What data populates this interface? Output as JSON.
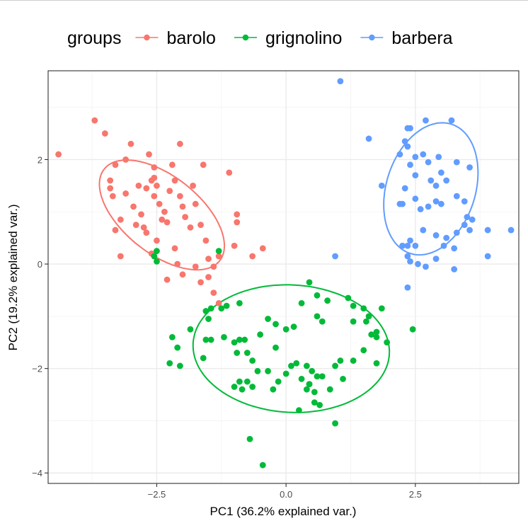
{
  "chart_data": {
    "type": "scatter",
    "xlabel": "PC1 (36.2% explained var.)",
    "ylabel": "PC2 (19.2% explained var.)",
    "xlim": [
      -4.6,
      4.5
    ],
    "ylim": [
      -4.2,
      3.7
    ],
    "xticks": [
      -2.5,
      0.0,
      2.5
    ],
    "xtick_labels": [
      "−2.5",
      "0.0",
      "2.5"
    ],
    "yticks": [
      -4,
      -2,
      0,
      2
    ],
    "ytick_labels": [
      "−4",
      "−2",
      "0",
      "2"
    ],
    "grid": true,
    "legend": {
      "title": "groups",
      "position": "top"
    },
    "series": [
      {
        "name": "barolo",
        "color": "#F8766D",
        "ellipse": {
          "cx": -2.4,
          "cy": 0.94,
          "rx": 1.42,
          "ry": 0.74,
          "angle_deg": -38
        },
        "points": [
          [
            -4.4,
            2.1
          ],
          [
            -3.7,
            2.75
          ],
          [
            -3.5,
            2.5
          ],
          [
            -3.3,
            1.9
          ],
          [
            -3.4,
            1.6
          ],
          [
            -3.4,
            1.45
          ],
          [
            -3.35,
            1.3
          ],
          [
            -3.2,
            0.85
          ],
          [
            -3.3,
            0.65
          ],
          [
            -3.1,
            2.0
          ],
          [
            -3.0,
            2.3
          ],
          [
            -3.1,
            1.35
          ],
          [
            -2.95,
            1.1
          ],
          [
            -2.9,
            0.75
          ],
          [
            -2.8,
            0.95
          ],
          [
            -2.75,
            0.7
          ],
          [
            -2.7,
            0.6
          ],
          [
            -2.55,
            1.85
          ],
          [
            -2.55,
            1.65
          ],
          [
            -2.5,
            1.5
          ],
          [
            -2.55,
            1.3
          ],
          [
            -2.45,
            1.15
          ],
          [
            -2.35,
            1.0
          ],
          [
            -2.4,
            0.85
          ],
          [
            -2.3,
            0.8
          ],
          [
            -2.5,
            0.45
          ],
          [
            -2.6,
            0.2
          ],
          [
            -3.2,
            0.15
          ],
          [
            -2.2,
            1.9
          ],
          [
            -2.15,
            1.6
          ],
          [
            -2.25,
            1.4
          ],
          [
            -2.05,
            1.3
          ],
          [
            -2.0,
            1.1
          ],
          [
            -1.95,
            0.9
          ],
          [
            -1.85,
            0.7
          ],
          [
            -2.15,
            0.3
          ],
          [
            -2.1,
            0.0
          ],
          [
            -2.3,
            -0.3
          ],
          [
            -2.0,
            -0.2
          ],
          [
            -1.75,
            1.15
          ],
          [
            -1.65,
            0.75
          ],
          [
            -1.55,
            0.45
          ],
          [
            -1.5,
            0.1
          ],
          [
            -1.4,
            -0.05
          ],
          [
            -1.3,
            0.15
          ],
          [
            -1.75,
            -0.05
          ],
          [
            -2.05,
            2.3
          ],
          [
            -1.8,
            1.5
          ],
          [
            -1.65,
            -0.35
          ],
          [
            -1.5,
            -0.25
          ],
          [
            -1.4,
            -0.55
          ],
          [
            -1.3,
            -0.75
          ],
          [
            -1.1,
            1.75
          ],
          [
            -0.95,
            0.95
          ],
          [
            -0.95,
            0.8
          ],
          [
            -1.0,
            0.35
          ],
          [
            -0.65,
            0.15
          ],
          [
            -0.45,
            0.3
          ],
          [
            -1.6,
            1.9
          ],
          [
            -2.7,
            1.45
          ],
          [
            -2.85,
            1.5
          ],
          [
            -2.6,
            1.6
          ],
          [
            -2.65,
            2.1
          ]
        ]
      },
      {
        "name": "grignolino",
        "color": "#00BA38",
        "ellipse": {
          "cx": 0.1,
          "cy": -1.62,
          "rx": 1.9,
          "ry": 1.22,
          "angle_deg": -3
        },
        "points": [
          [
            -2.5,
            0.25
          ],
          [
            -2.5,
            0.05
          ],
          [
            -1.3,
            0.25
          ],
          [
            -1.55,
            -0.9
          ],
          [
            -1.5,
            -1.05
          ],
          [
            -1.25,
            -0.85
          ],
          [
            -1.15,
            -0.8
          ],
          [
            -2.2,
            -1.4
          ],
          [
            -2.1,
            -1.6
          ],
          [
            -1.85,
            -1.25
          ],
          [
            -2.25,
            -1.9
          ],
          [
            -2.05,
            -1.95
          ],
          [
            -1.6,
            -1.8
          ],
          [
            -1.55,
            -1.45
          ],
          [
            -1.45,
            -1.45
          ],
          [
            -1.2,
            -1.4
          ],
          [
            -1.0,
            -1.5
          ],
          [
            -0.95,
            -1.7
          ],
          [
            -0.9,
            -1.45
          ],
          [
            -0.8,
            -1.45
          ],
          [
            -0.75,
            -1.7
          ],
          [
            -0.65,
            -1.85
          ],
          [
            -0.9,
            -0.75
          ],
          [
            -0.35,
            -1.05
          ],
          [
            -0.2,
            -1.15
          ],
          [
            -0.5,
            -1.35
          ],
          [
            0.0,
            -1.25
          ],
          [
            0.15,
            -1.2
          ],
          [
            0.3,
            -0.75
          ],
          [
            0.45,
            -0.35
          ],
          [
            0.6,
            -1.0
          ],
          [
            0.7,
            -1.1
          ],
          [
            0.8,
            -0.7
          ],
          [
            1.2,
            -0.65
          ],
          [
            1.3,
            -0.8
          ],
          [
            1.5,
            -0.85
          ],
          [
            1.6,
            -1.0
          ],
          [
            1.75,
            -1.3
          ],
          [
            1.85,
            -0.85
          ],
          [
            1.95,
            -1.5
          ],
          [
            1.75,
            -1.4
          ],
          [
            1.65,
            -1.35
          ],
          [
            1.55,
            -1.1
          ],
          [
            1.5,
            -1.65
          ],
          [
            1.3,
            -1.85
          ],
          [
            1.05,
            -1.85
          ],
          [
            0.95,
            -1.95
          ],
          [
            0.7,
            -2.15
          ],
          [
            0.5,
            -2.05
          ],
          [
            0.4,
            -1.95
          ],
          [
            0.3,
            -2.2
          ],
          [
            0.2,
            -1.9
          ],
          [
            0.1,
            -1.95
          ],
          [
            0.0,
            -2.1
          ],
          [
            -0.15,
            -2.25
          ],
          [
            -0.25,
            -2.4
          ],
          [
            -0.35,
            -2.05
          ],
          [
            -0.55,
            -2.05
          ],
          [
            -0.75,
            -2.25
          ],
          [
            -0.9,
            -2.25
          ],
          [
            -1.0,
            -2.35
          ],
          [
            -0.85,
            -2.4
          ],
          [
            -0.65,
            -2.35
          ],
          [
            0.45,
            -2.3
          ],
          [
            0.55,
            -2.45
          ],
          [
            0.55,
            -2.65
          ],
          [
            0.65,
            -2.7
          ],
          [
            0.45,
            -2.3
          ],
          [
            0.4,
            -2.4
          ],
          [
            0.25,
            -2.8
          ],
          [
            -0.7,
            -3.35
          ],
          [
            -0.45,
            -3.85
          ],
          [
            0.95,
            -3.05
          ],
          [
            -2.55,
            0.15
          ],
          [
            2.45,
            -1.25
          ],
          [
            1.3,
            -1.1
          ],
          [
            1.1,
            -2.2
          ],
          [
            0.6,
            -2.15
          ],
          [
            -1.45,
            -0.85
          ],
          [
            0.85,
            -2.4
          ],
          [
            1.75,
            -1.9
          ],
          [
            0.6,
            -0.6
          ],
          [
            -0.2,
            -1.6
          ]
        ]
      },
      {
        "name": "barbera",
        "color": "#619CFF",
        "ellipse": {
          "cx": 2.8,
          "cy": 1.44,
          "rx": 1.3,
          "ry": 0.86,
          "angle_deg": 72
        },
        "points": [
          [
            1.05,
            3.5
          ],
          [
            1.6,
            2.4
          ],
          [
            0.95,
            0.15
          ],
          [
            2.35,
            2.6
          ],
          [
            2.4,
            2.6
          ],
          [
            2.7,
            2.75
          ],
          [
            3.2,
            2.75
          ],
          [
            2.3,
            2.35
          ],
          [
            2.35,
            2.25
          ],
          [
            2.5,
            2.05
          ],
          [
            2.65,
            2.1
          ],
          [
            2.75,
            1.95
          ],
          [
            2.95,
            2.05
          ],
          [
            3.0,
            1.75
          ],
          [
            2.2,
            2.1
          ],
          [
            2.4,
            1.9
          ],
          [
            2.8,
            1.6
          ],
          [
            2.9,
            1.5
          ],
          [
            3.1,
            1.6
          ],
          [
            3.3,
            1.95
          ],
          [
            3.55,
            1.85
          ],
          [
            1.85,
            1.5
          ],
          [
            2.3,
            1.45
          ],
          [
            2.5,
            1.25
          ],
          [
            2.6,
            1.05
          ],
          [
            2.9,
            1.2
          ],
          [
            3.3,
            1.3
          ],
          [
            3.45,
            1.2
          ],
          [
            2.2,
            1.15
          ],
          [
            2.25,
            1.15
          ],
          [
            2.75,
            1.1
          ],
          [
            3.0,
            1.15
          ],
          [
            3.5,
            0.9
          ],
          [
            3.6,
            0.85
          ],
          [
            2.65,
            0.65
          ],
          [
            2.9,
            0.55
          ],
          [
            3.1,
            0.5
          ],
          [
            3.3,
            0.6
          ],
          [
            3.45,
            0.75
          ],
          [
            3.9,
            0.65
          ],
          [
            4.35,
            0.65
          ],
          [
            2.4,
            0.45
          ],
          [
            2.5,
            0.35
          ],
          [
            2.25,
            0.35
          ],
          [
            2.35,
            0.35
          ],
          [
            3.05,
            0.35
          ],
          [
            3.25,
            0.3
          ],
          [
            2.4,
            0.05
          ],
          [
            2.55,
            0.0
          ],
          [
            2.7,
            -0.05
          ],
          [
            2.9,
            0.1
          ],
          [
            3.25,
            -0.1
          ],
          [
            3.9,
            0.15
          ],
          [
            2.35,
            -0.45
          ],
          [
            2.5,
            1.7
          ],
          [
            2.35,
            0.15
          ],
          [
            3.55,
            0.65
          ]
        ]
      }
    ]
  }
}
